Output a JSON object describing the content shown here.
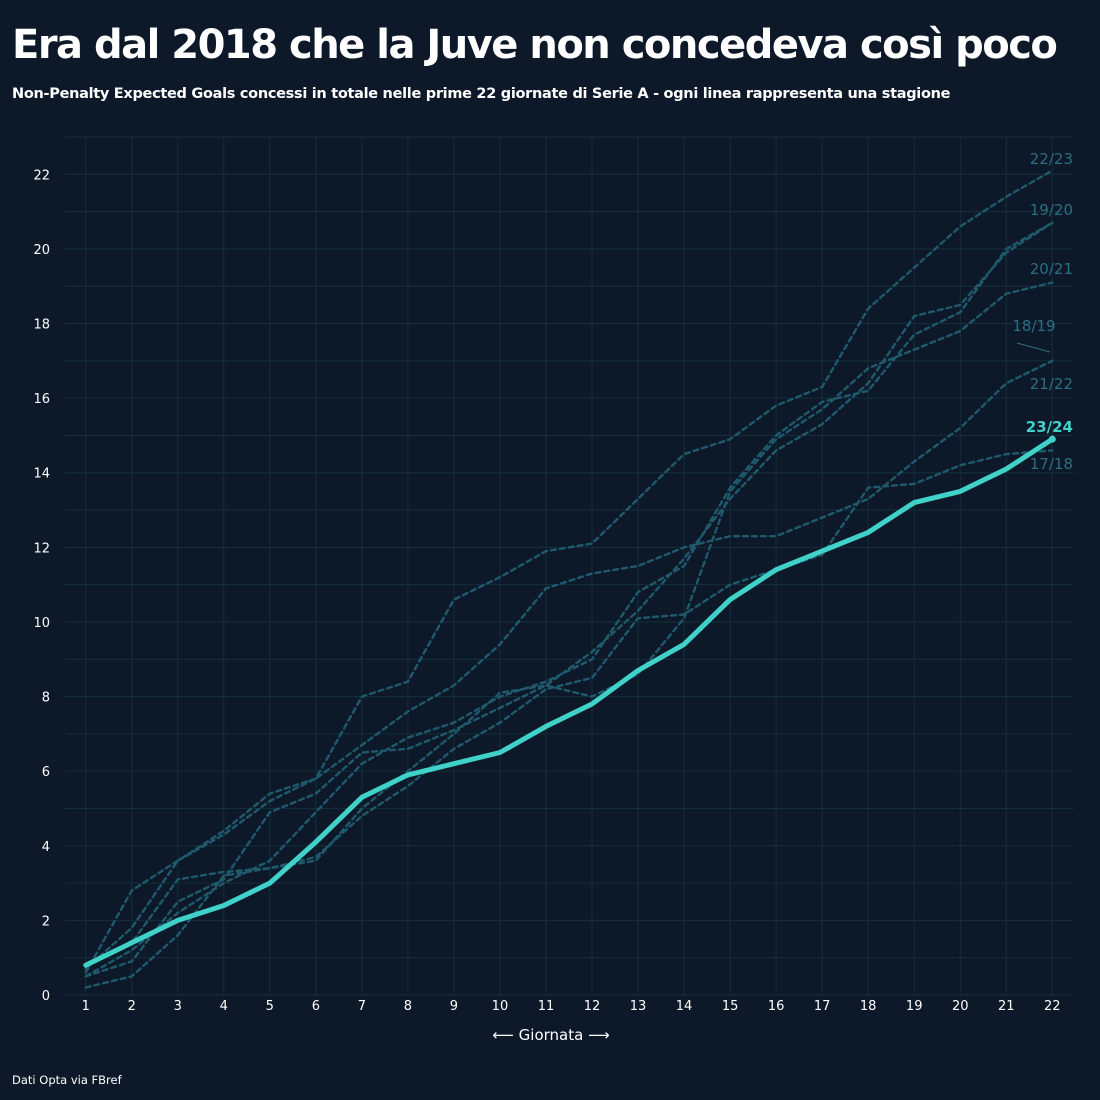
{
  "title": "Era dal 2018 che la Juve non concedeva così poco",
  "subtitle": "Non-Penalty Expected Goals concessi in totale nelle prime 22 giornate di Serie A - ogni linea rappresenta una stagione",
  "source": "Dati Opta via FBref",
  "colors": {
    "background": "#0d1829",
    "grid": "#13303a",
    "highlight": "#40d1c8",
    "muted": "#1f5a6c",
    "muted_label": "#2b6f80"
  },
  "chart_data": {
    "type": "line",
    "title": "Era dal 2018 che la Juve non concedeva così poco",
    "xlabel": "⟵ Giornata ⟶",
    "ylabel": "",
    "x": [
      1,
      2,
      3,
      4,
      5,
      6,
      7,
      8,
      9,
      10,
      11,
      12,
      13,
      14,
      15,
      16,
      17,
      18,
      19,
      20,
      21,
      22
    ],
    "xlim": [
      0.55,
      22.45
    ],
    "ylim": [
      0,
      23
    ],
    "y_ticks": [
      0,
      2,
      4,
      6,
      8,
      10,
      12,
      14,
      16,
      18,
      20,
      22
    ],
    "grid": true,
    "series": [
      {
        "name": "17/18",
        "highlight": false,
        "values": [
          0.2,
          0.5,
          1.6,
          3.2,
          3.4,
          3.7,
          4.8,
          5.6,
          6.6,
          7.3,
          8.2,
          8.5,
          10.1,
          10.2,
          11.0,
          11.4,
          11.8,
          13.6,
          13.7,
          14.2,
          14.5,
          14.6
        ]
      },
      {
        "name": "18/19",
        "highlight": false,
        "values": [
          0.5,
          0.9,
          2.5,
          3.1,
          4.9,
          5.4,
          6.5,
          6.6,
          7.1,
          7.7,
          8.3,
          8.0,
          8.6,
          10.1,
          13.5,
          14.9,
          15.7,
          16.8,
          17.3,
          17.8,
          18.8,
          19.1
        ]
      },
      {
        "name": "19/20",
        "highlight": false,
        "values": [
          0.7,
          1.8,
          3.6,
          4.3,
          5.2,
          5.8,
          6.7,
          7.6,
          8.3,
          9.4,
          10.9,
          11.3,
          11.5,
          12.0,
          12.3,
          12.3,
          12.8,
          13.3,
          14.3,
          15.2,
          16.4,
          17.0
        ]
      },
      {
        "name": "20/21",
        "highlight": false,
        "values": [
          0.8,
          1.4,
          3.1,
          3.3,
          3.4,
          3.6,
          5.0,
          6.0,
          7.0,
          8.1,
          8.3,
          9.2,
          10.3,
          11.7,
          13.3,
          14.6,
          15.3,
          16.4,
          18.2,
          18.5,
          19.9,
          20.7
        ]
      },
      {
        "name": "21/22",
        "highlight": false,
        "values": [
          0.5,
          1.2,
          2.2,
          3.0,
          3.6,
          4.9,
          6.2,
          6.9,
          7.3,
          8.0,
          8.4,
          9.0,
          10.8,
          11.5,
          13.6,
          15.0,
          15.9,
          16.2,
          17.7,
          18.3,
          20.0,
          20.7
        ]
      },
      {
        "name": "22/23",
        "highlight": false,
        "values": [
          0.6,
          2.8,
          3.6,
          4.4,
          5.4,
          5.8,
          8.0,
          8.4,
          10.6,
          11.2,
          11.9,
          12.1,
          13.3,
          14.5,
          14.9,
          15.8,
          16.3,
          18.4,
          19.5,
          20.6,
          21.4,
          22.1
        ]
      },
      {
        "name": "23/24",
        "highlight": true,
        "values": [
          0.8,
          1.4,
          2.0,
          2.4,
          3.0,
          4.1,
          5.3,
          5.9,
          6.2,
          6.5,
          7.2,
          7.8,
          8.7,
          9.4,
          10.6,
          11.4,
          11.9,
          12.4,
          13.2,
          13.5,
          14.1,
          14.9
        ]
      }
    ],
    "end_labels": [
      "22/23",
      "19/20",
      "20/21",
      "18/19",
      "21/22",
      "23/24",
      "17/18"
    ]
  }
}
